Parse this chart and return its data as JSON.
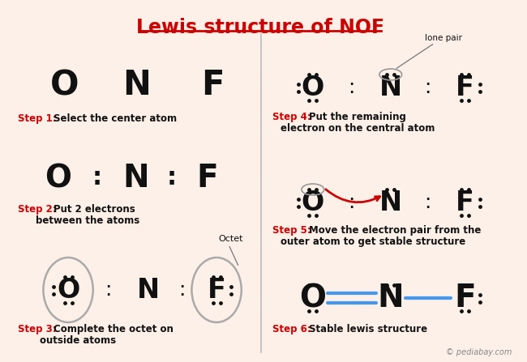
{
  "title": "Lewis structure of NOF",
  "bg_color": "#fdf0e8",
  "title_color": "#cc0000",
  "title_fontsize": 17,
  "step_label_color": "#cc0000",
  "atom_color": "#111111",
  "pediabay_text": "© pediabay.com",
  "dot_color": "#111111",
  "bond_color": "#4499ee",
  "divider_color": "#bbbbbb",
  "annotation_color": "#666666",
  "octet_text": "Octet",
  "lone_pair_text": "lone pair"
}
